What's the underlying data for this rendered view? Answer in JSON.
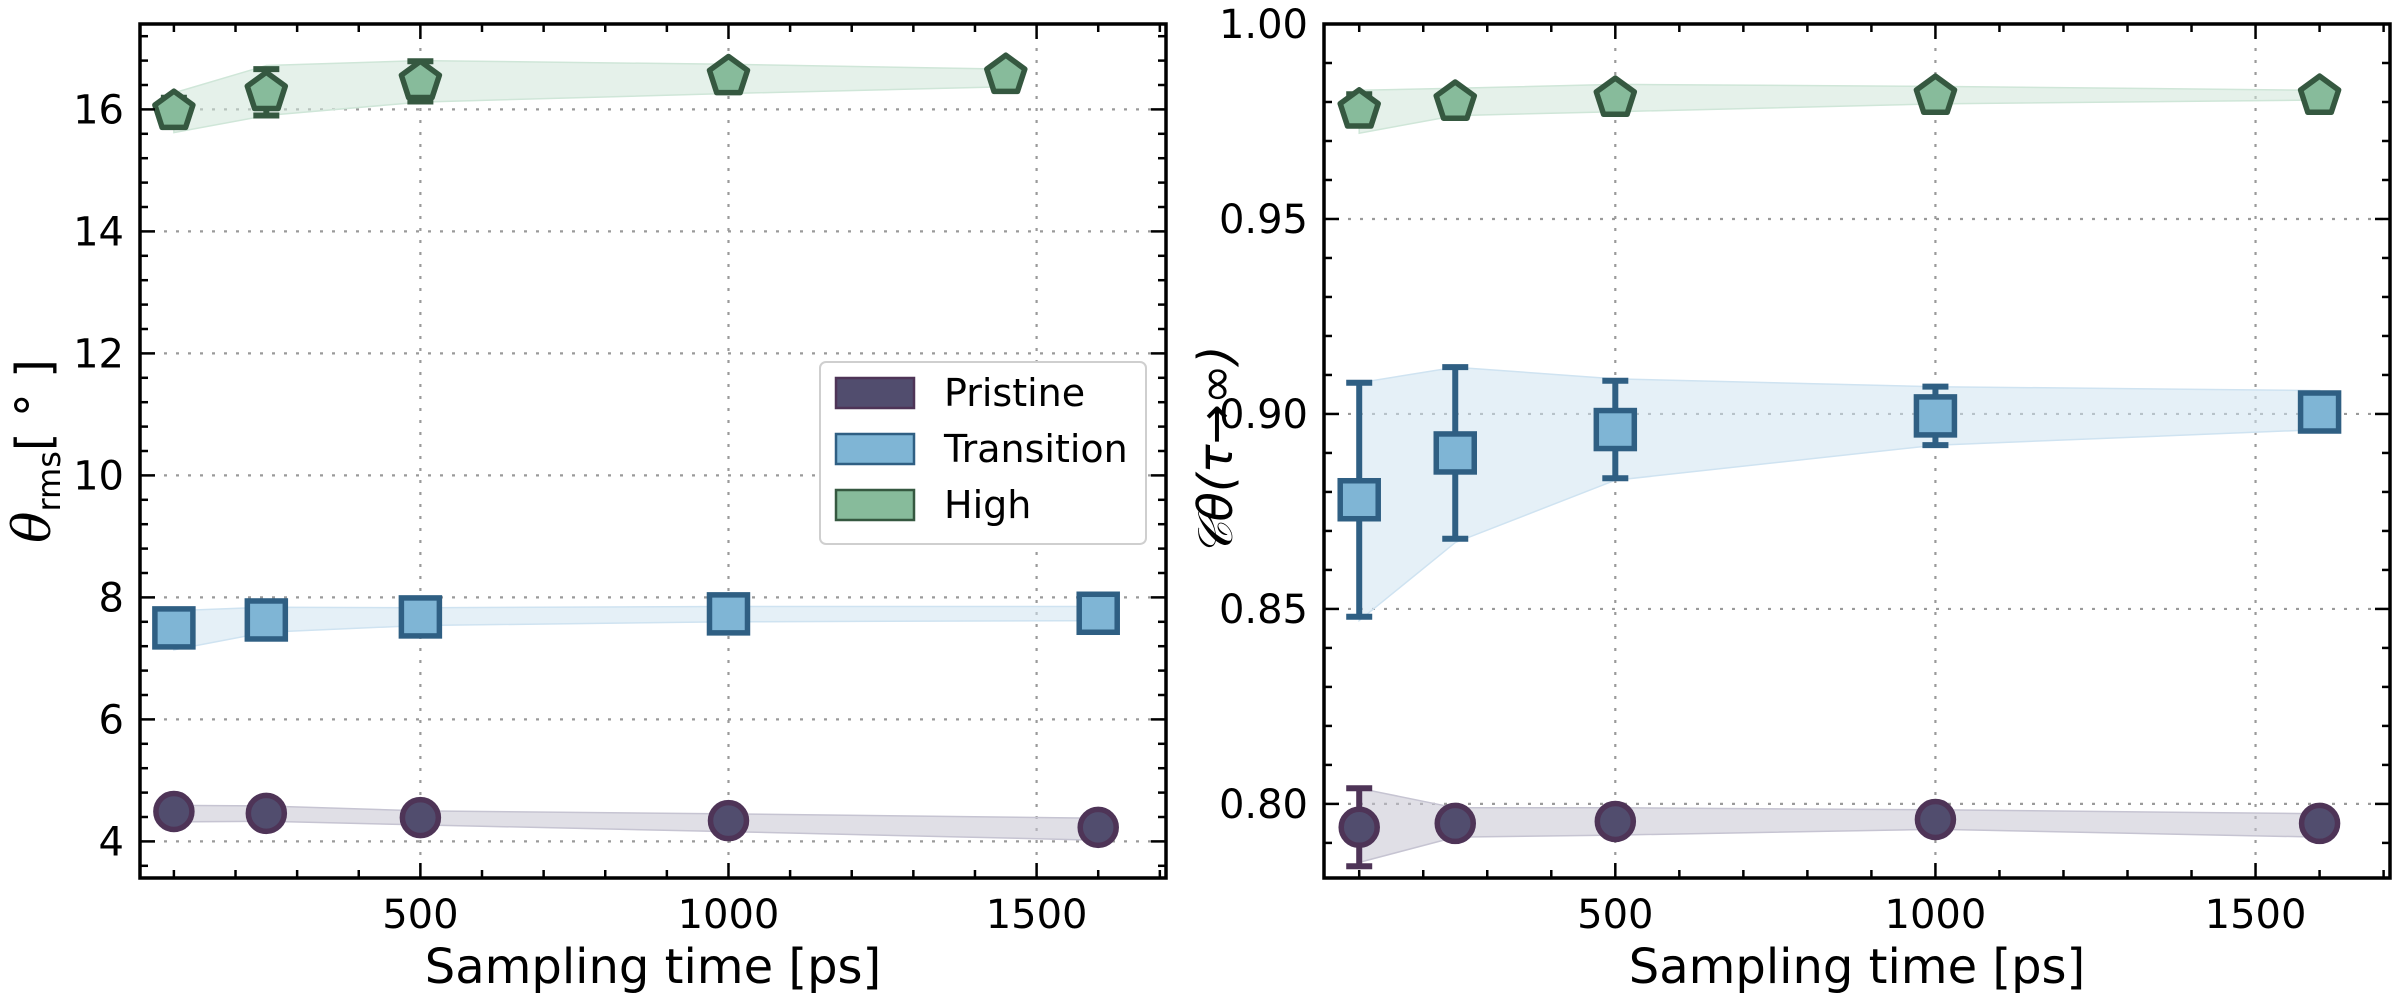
{
  "chart_data": [
    {
      "type": "scatter",
      "xlabel": "Sampling time [ps]",
      "ylabel": "θ",
      "ylabel_sub": "rms",
      "ylabel_unit": "[ ° ]",
      "xticks": [
        500,
        1000,
        1500
      ],
      "yticks": [
        4,
        6,
        8,
        10,
        12,
        14,
        16
      ],
      "xlim": [
        45,
        1710
      ],
      "ylim": [
        3.4,
        17.4
      ],
      "grid": true,
      "legend": {
        "placement": "center-right",
        "entries": [
          "Pristine",
          "Transition",
          "High"
        ]
      },
      "series": [
        {
          "name": "Pristine",
          "marker": "circle",
          "x": [
            100,
            250,
            500,
            1000,
            1600
          ],
          "y": [
            4.49,
            4.46,
            4.39,
            4.34,
            4.23
          ],
          "yerr": [
            0.08,
            0.08,
            0.07,
            0.06,
            0.05
          ],
          "band_lower": [
            4.32,
            4.33,
            4.27,
            4.16,
            4.02
          ],
          "band_upper": [
            4.59,
            4.58,
            4.5,
            4.45,
            4.38
          ]
        },
        {
          "name": "Transition",
          "marker": "square",
          "x": [
            100,
            250,
            500,
            1000,
            1600
          ],
          "y": [
            7.5,
            7.63,
            7.68,
            7.73,
            7.74
          ],
          "yerr": [
            0.28,
            0.13,
            0.11,
            0.1,
            0.06
          ],
          "band_lower": [
            7.14,
            7.43,
            7.54,
            7.6,
            7.62
          ],
          "band_upper": [
            7.78,
            7.84,
            7.83,
            7.85,
            7.85
          ]
        },
        {
          "name": "High",
          "marker": "pentagon",
          "x": [
            100,
            250,
            500,
            1000,
            1450
          ],
          "y": [
            15.97,
            16.28,
            16.46,
            16.54,
            16.56
          ],
          "yerr": [
            0.22,
            0.38,
            0.33,
            0.18,
            0.12
          ],
          "band_lower": [
            15.62,
            15.9,
            16.12,
            16.26,
            16.37
          ],
          "band_upper": [
            16.27,
            16.72,
            16.8,
            16.74,
            16.66
          ]
        }
      ]
    },
    {
      "type": "scatter",
      "xlabel": "Sampling time [ps]",
      "ylabel": "𝒞θ(τ→∞)",
      "xticks": [
        500,
        1000,
        1500
      ],
      "yticks": [
        0.8,
        0.85,
        0.9,
        0.95,
        1.0
      ],
      "ytick_labels": [
        "0.80",
        "0.85",
        "0.90",
        "0.95",
        "1.00"
      ],
      "xlim": [
        45,
        1710
      ],
      "ylim": [
        0.781,
        1.0
      ],
      "grid": true,
      "series": [
        {
          "name": "Pristine",
          "marker": "circle",
          "x": [
            100,
            250,
            500,
            1000,
            1600
          ],
          "y": [
            0.794,
            0.795,
            0.7955,
            0.796,
            0.795
          ],
          "yerr": [
            0.01,
            0.0,
            0.0,
            0.0,
            0.0
          ],
          "band_lower": [
            0.785,
            0.7915,
            0.792,
            0.7935,
            0.7915
          ],
          "band_upper": [
            0.804,
            0.799,
            0.799,
            0.7985,
            0.7975
          ]
        },
        {
          "name": "Transition",
          "marker": "square",
          "x": [
            100,
            250,
            500,
            1000,
            1600
          ],
          "y": [
            0.878,
            0.89,
            0.896,
            0.8995,
            0.9005
          ],
          "yerr": [
            0.03,
            0.022,
            0.0125,
            0.0075,
            0.004
          ],
          "band_lower": [
            0.847,
            0.867,
            0.883,
            0.892,
            0.896
          ],
          "band_upper": [
            0.908,
            0.912,
            0.909,
            0.907,
            0.906
          ]
        },
        {
          "name": "High",
          "marker": "pentagon",
          "x": [
            100,
            250,
            500,
            1000,
            1600
          ],
          "y": [
            0.978,
            0.98,
            0.981,
            0.9815,
            0.9815
          ],
          "yerr": [
            0.004,
            0.0,
            0.0,
            0.0,
            0.0
          ],
          "band_lower": [
            0.972,
            0.9765,
            0.9775,
            0.9795,
            0.9805
          ],
          "band_upper": [
            0.983,
            0.9835,
            0.9845,
            0.984,
            0.983
          ]
        }
      ]
    }
  ],
  "series_styles": {
    "Pristine": {
      "fill": "#514d6e",
      "edge": "#4e3457",
      "band": "#c6c4d2"
    },
    "Transition": {
      "fill": "#7fb5d5",
      "edge": "#2f5f83",
      "band": "#cfe3f1"
    },
    "High": {
      "fill": "#87bb9b",
      "edge": "#355840",
      "band": "#cfe6d8"
    }
  }
}
